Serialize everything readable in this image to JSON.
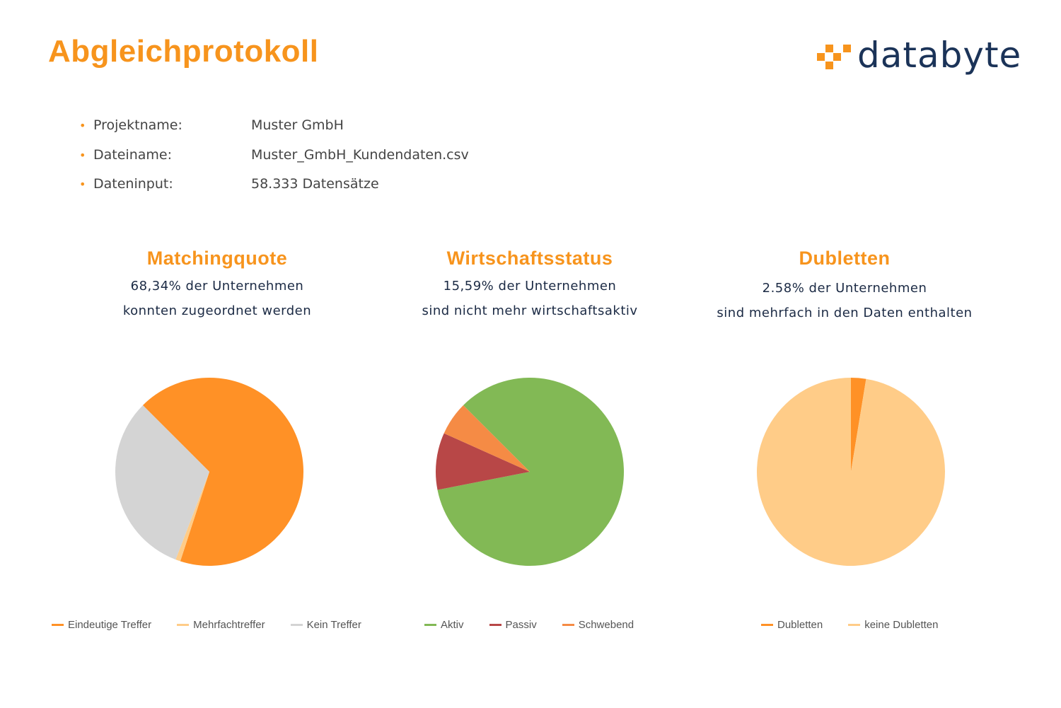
{
  "header": {
    "title": "Abgleichprotokoll",
    "logo_text": "databyte"
  },
  "info": [
    {
      "label": "Projektname:",
      "value": "Muster GmbH"
    },
    {
      "label": "Dateiname:",
      "value": "Muster_GmbH_Kundendaten.csv"
    },
    {
      "label": "Dateninput:",
      "value": "58.333 Datensätze"
    }
  ],
  "chart_data": [
    {
      "type": "pie",
      "title": "Matchingquote",
      "subtitle": [
        "68,34% der Unternehmen",
        "konnten zugeordnet werden"
      ],
      "legend_placement": "bottom",
      "slices": [
        {
          "name": "Eindeutige Treffer",
          "value": 67.5,
          "color": "#ff9126"
        },
        {
          "name": "Mehrfachtreffer",
          "value": 0.84,
          "color": "#ffcc88"
        },
        {
          "name": "Kein Treffer",
          "value": 31.66,
          "color": "#d4d4d4"
        }
      ]
    },
    {
      "type": "pie",
      "title": "Wirtschaftsstatus",
      "subtitle": [
        "15,59% der Unternehmen",
        "sind nicht mehr wirtschaftsaktiv"
      ],
      "legend_placement": "bottom",
      "slices": [
        {
          "name": "Aktiv",
          "value": 84.41,
          "color": "#82b955"
        },
        {
          "name": "Passiv",
          "value": 9.8,
          "color": "#b84747"
        },
        {
          "name": "Schwebend",
          "value": 5.79,
          "color": "#f58b45"
        }
      ]
    },
    {
      "type": "pie",
      "title": "Dubletten",
      "subtitle": [
        "2.58% der Unternehmen",
        "sind mehrfach in den Daten enthalten"
      ],
      "legend_placement": "bottom",
      "slices": [
        {
          "name": "Dubletten",
          "value": 2.58,
          "color": "#ff9126"
        },
        {
          "name": "keine Dubletten",
          "value": 97.42,
          "color": "#ffcc88"
        }
      ]
    }
  ]
}
